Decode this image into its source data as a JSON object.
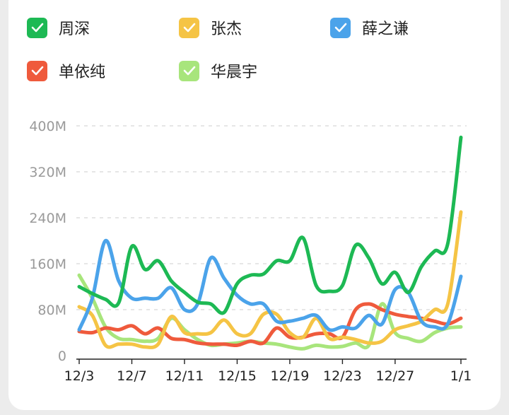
{
  "legend": [
    {
      "name": "周深",
      "color": "#1db954",
      "checked": true
    },
    {
      "name": "张杰",
      "color": "#f5c445",
      "checked": true
    },
    {
      "name": "薛之谦",
      "color": "#4ba3ea",
      "checked": true
    },
    {
      "name": "单依纯",
      "color": "#ef5a3c",
      "checked": true
    },
    {
      "name": "华晨宇",
      "color": "#a8e57c",
      "checked": true
    }
  ],
  "icons": {
    "legend_check": "check-icon"
  },
  "chart_data": {
    "type": "line",
    "y_ticks": [
      "400M",
      "320M",
      "240M",
      "160M",
      "80M",
      "0"
    ],
    "ylim": [
      0,
      400
    ],
    "x_ticks": [
      "12/3",
      "12/7",
      "12/11",
      "12/15",
      "12/19",
      "12/23",
      "12/27",
      "1/1"
    ],
    "x": [
      "12/3",
      "12/4",
      "12/5",
      "12/6",
      "12/7",
      "12/8",
      "12/9",
      "12/10",
      "12/11",
      "12/12",
      "12/13",
      "12/14",
      "12/15",
      "12/16",
      "12/17",
      "12/18",
      "12/19",
      "12/20",
      "12/21",
      "12/22",
      "12/23",
      "12/24",
      "12/25",
      "12/26",
      "12/27",
      "12/28",
      "12/29",
      "12/30",
      "12/31",
      "1/1"
    ],
    "grid": true,
    "series": [
      {
        "name": "周深",
        "color": "#1db954",
        "values": [
          120,
          108,
          98,
          92,
          190,
          150,
          165,
          130,
          110,
          93,
          90,
          75,
          125,
          140,
          142,
          165,
          165,
          205,
          122,
          112,
          122,
          192,
          170,
          125,
          145,
          110,
          155,
          182,
          195,
          380
        ]
      },
      {
        "name": "张杰",
        "color": "#f5c445",
        "values": [
          85,
          70,
          18,
          20,
          20,
          15,
          20,
          68,
          40,
          38,
          40,
          62,
          38,
          38,
          72,
          72,
          40,
          32,
          65,
          30,
          32,
          28,
          22,
          25,
          45,
          52,
          60,
          80,
          90,
          250
        ]
      },
      {
        "name": "薛之谦",
        "color": "#4ba3ea",
        "values": [
          45,
          100,
          200,
          130,
          100,
          100,
          100,
          118,
          80,
          90,
          170,
          135,
          105,
          90,
          90,
          60,
          60,
          65,
          70,
          45,
          50,
          48,
          70,
          55,
          115,
          110,
          60,
          50,
          55,
          138
        ]
      },
      {
        "name": "单依纯",
        "color": "#ef5a3c",
        "values": [
          42,
          40,
          48,
          45,
          52,
          38,
          48,
          30,
          28,
          22,
          20,
          20,
          18,
          25,
          22,
          48,
          32,
          32,
          38,
          38,
          32,
          80,
          90,
          80,
          72,
          68,
          65,
          60,
          55,
          65
        ]
      },
      {
        "name": "华晨宇",
        "color": "#a8e57c",
        "values": [
          140,
          100,
          50,
          30,
          28,
          25,
          30,
          65,
          45,
          28,
          18,
          20,
          22,
          25,
          22,
          20,
          15,
          12,
          18,
          15,
          16,
          22,
          18,
          90,
          40,
          30,
          25,
          40,
          48,
          50
        ]
      }
    ]
  }
}
